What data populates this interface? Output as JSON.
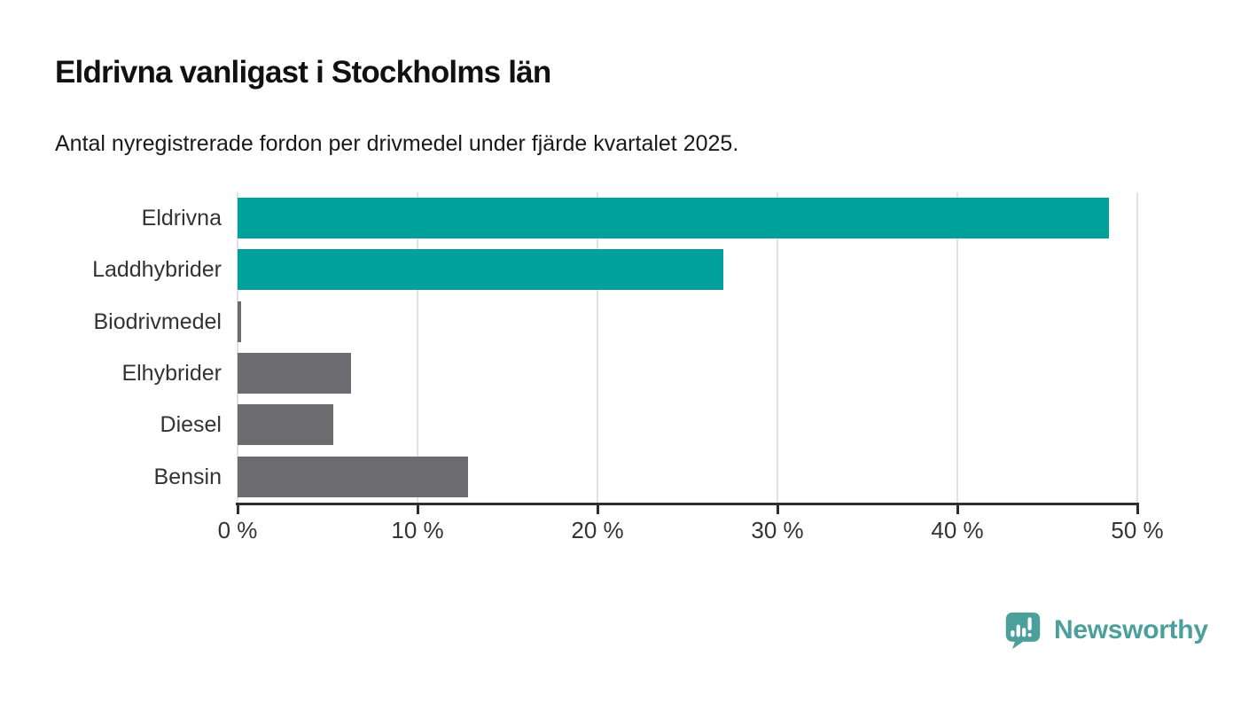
{
  "chart_data": {
    "type": "bar",
    "orientation": "horizontal",
    "title": "Eldrivna vanligast i Stockholms län",
    "subtitle": "Antal nyregistrerade fordon per drivmedel under fjärde kvartalet 2025.",
    "categories": [
      "Eldrivna",
      "Laddhybrider",
      "Biodrivmedel",
      "Elhybrider",
      "Diesel",
      "Bensin"
    ],
    "values": [
      48.4,
      27.0,
      0.2,
      6.3,
      5.3,
      12.8
    ],
    "unit": "%",
    "bar_colors": [
      "#00a19a",
      "#00a19a",
      "#6b6b70",
      "#6b6b70",
      "#6b6b70",
      "#6b6b70"
    ],
    "accent_color": "#00a19a",
    "muted_color": "#6b6b70",
    "xlim": [
      0,
      50
    ],
    "x_ticks": [
      {
        "value": 0,
        "label": "0 %"
      },
      {
        "value": 10,
        "label": "10 %"
      },
      {
        "value": 20,
        "label": "20 %"
      },
      {
        "value": 30,
        "label": "30 %"
      },
      {
        "value": 40,
        "label": "40 %"
      },
      {
        "value": 50,
        "label": "50 %"
      }
    ],
    "grid": true,
    "legend": false,
    "gridline_color": "#e1e1e1",
    "axis_color": "#2e2e2e",
    "label_color": "#333333"
  },
  "footer": {
    "brand": "Newsworthy",
    "brand_color": "#4ba09b",
    "logo_icon": "bar-chart-speech-bubble-icon"
  }
}
